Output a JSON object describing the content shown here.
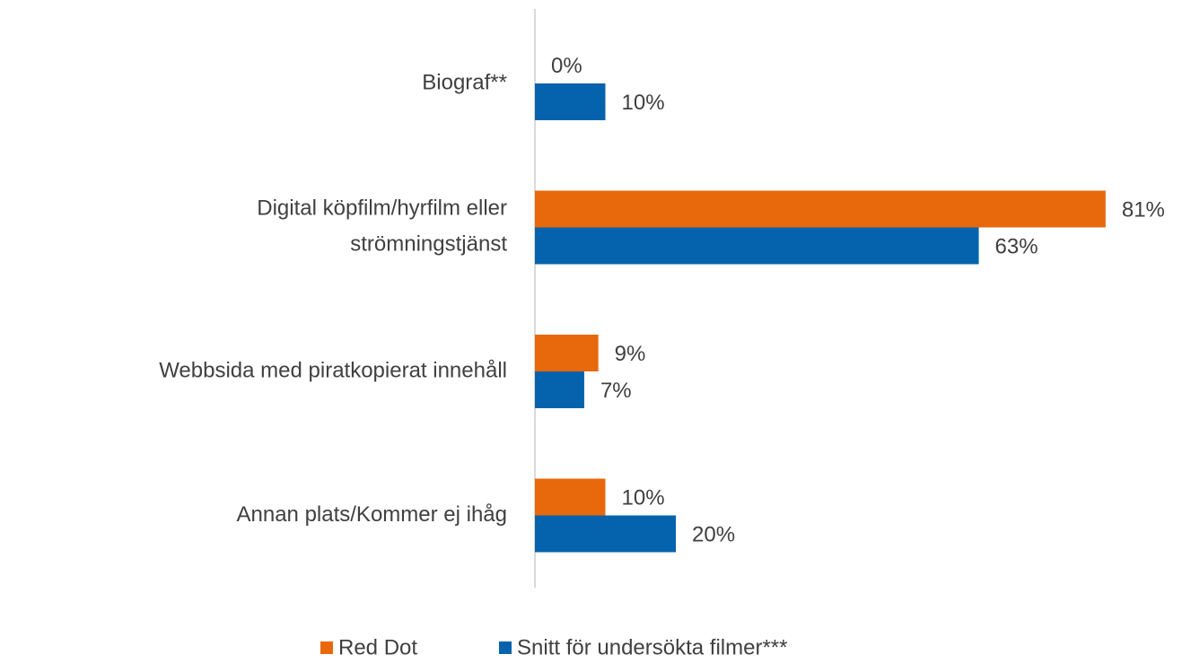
{
  "chart_data": {
    "type": "bar",
    "orientation": "horizontal",
    "categories": [
      "Biograf**",
      "Digital köpfilm/hyrfilm eller\nströmningstjänst",
      "Webbsida med piratkopierat innehåll",
      "Annan plats/Kommer ej ihåg"
    ],
    "series": [
      {
        "name": "Red Dot",
        "color": "#e8680c",
        "values": [
          0,
          81,
          9,
          10
        ],
        "value_labels": [
          "0%",
          "81%",
          "9%",
          "10%"
        ]
      },
      {
        "name": "Snitt för undersökta filmer***",
        "color": "#0563ad",
        "values": [
          10,
          63,
          7,
          20
        ],
        "value_labels": [
          "10%",
          "63%",
          "7%",
          "20%"
        ]
      }
    ],
    "legend": "bottom"
  }
}
